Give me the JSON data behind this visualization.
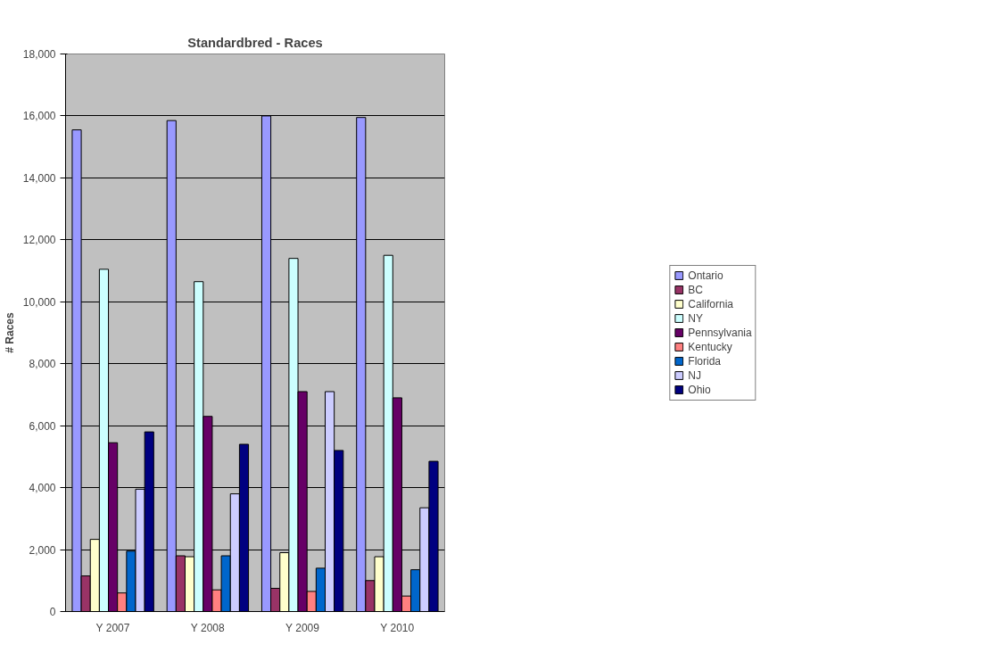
{
  "chart_data": {
    "type": "bar",
    "title": "Standardbred - Races",
    "ylabel": "# Races",
    "categories": [
      "Y 2007",
      "Y 2008",
      "Y 2009",
      "Y 2010"
    ],
    "series": [
      {
        "name": "Ontario",
        "color": "#9999ff",
        "values": [
          15550,
          15850,
          16000,
          15950
        ]
      },
      {
        "name": "BC",
        "color": "#993366",
        "values": [
          1150,
          1800,
          750,
          1000
        ]
      },
      {
        "name": "California",
        "color": "#ffffcc",
        "values": [
          2330,
          1770,
          1900,
          1770
        ]
      },
      {
        "name": "NY",
        "color": "#ccffff",
        "values": [
          11050,
          10650,
          11400,
          11500
        ]
      },
      {
        "name": "Pennsylvania",
        "color": "#660066",
        "values": [
          5450,
          6300,
          7100,
          6900
        ]
      },
      {
        "name": "Kentucky",
        "color": "#ff8080",
        "values": [
          600,
          700,
          650,
          500
        ]
      },
      {
        "name": "Florida",
        "color": "#0066cc",
        "values": [
          1950,
          1800,
          1400,
          1350
        ]
      },
      {
        "name": "NJ",
        "color": "#ccccff",
        "values": [
          3950,
          3800,
          7100,
          3350
        ]
      },
      {
        "name": "Ohio",
        "color": "#000080",
        "values": [
          5800,
          5400,
          5200,
          4850
        ]
      }
    ],
    "ylim": [
      0,
      18000
    ],
    "yticks": [
      {
        "value": 0,
        "label": "0"
      },
      {
        "value": 2000,
        "label": "2,000"
      },
      {
        "value": 4000,
        "label": "4,000"
      },
      {
        "value": 6000,
        "label": "6,000"
      },
      {
        "value": 8000,
        "label": "8,000"
      },
      {
        "value": 10000,
        "label": "10,000"
      },
      {
        "value": 12000,
        "label": "12,000"
      },
      {
        "value": 14000,
        "label": "14,000"
      },
      {
        "value": 16000,
        "label": "16,000"
      },
      {
        "value": 18000,
        "label": "18,000"
      }
    ],
    "grid": "y",
    "legend": "right"
  }
}
